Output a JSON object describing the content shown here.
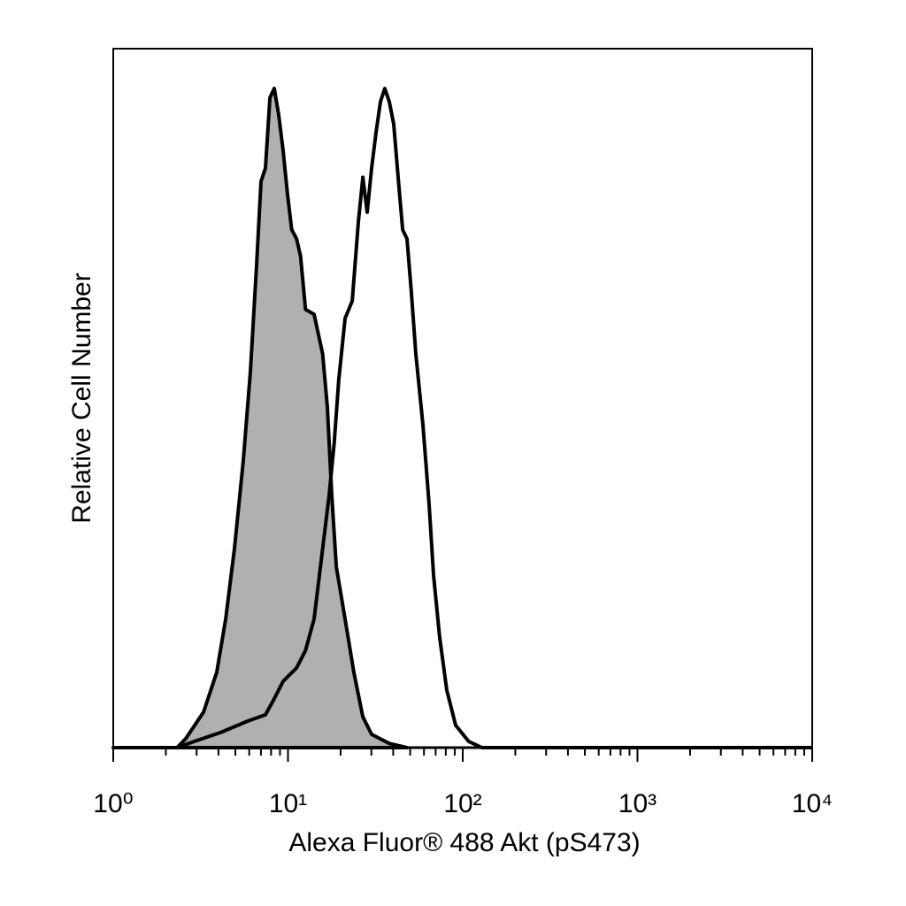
{
  "chart_data": {
    "type": "histogram-overlay",
    "xlabel": "Alexa Fluor® 488 Akt (pS473)",
    "ylabel": "Relative Cell Number",
    "xscale": "log",
    "xlim": [
      1,
      10000
    ],
    "ylim": [
      0,
      100
    ],
    "xticks": [
      {
        "value": 1,
        "label": "10⁰"
      },
      {
        "value": 10,
        "label": "10¹"
      },
      {
        "value": 100,
        "label": "10²"
      },
      {
        "value": 1000,
        "label": "10³"
      },
      {
        "value": 10000,
        "label": "10⁴"
      }
    ],
    "xminorticks": [
      2,
      3,
      4,
      5,
      6,
      7,
      8,
      9,
      20,
      30,
      40,
      50,
      60,
      70,
      80,
      90,
      200,
      300,
      400,
      500,
      600,
      700,
      800,
      900,
      2000,
      3000,
      4000,
      5000,
      6000,
      7000,
      8000,
      9000
    ],
    "series": [
      {
        "color": "#000000",
        "fill": "#b0b0b0",
        "x": [
          1,
          2.32,
          2.6,
          3.29,
          3.91,
          4.4,
          4.94,
          5.55,
          6.09,
          6.61,
          7.01,
          7.43,
          7.88,
          8.35,
          8.85,
          9.38,
          9.94,
          10.5,
          11.2,
          11.8,
          12.6,
          14.1,
          15.8,
          16.8,
          17.8,
          18.9,
          21.2,
          23.8,
          26.8,
          30.1,
          38.0,
          48.0
        ],
        "values": [
          0,
          0,
          1.3,
          5.1,
          10.8,
          18.4,
          28.5,
          41.1,
          53.8,
          69.0,
          81.0,
          82.9,
          93.0,
          94.3,
          90.5,
          85.4,
          79.1,
          74.1,
          72.8,
          70.3,
          62.7,
          62.0,
          56.3,
          48.7,
          36.1,
          25.9,
          18.4,
          10.8,
          4.4,
          1.9,
          0.6,
          0
        ]
      },
      {
        "color": "#000000",
        "fill": "none",
        "x": [
          1,
          2.32,
          2.92,
          4.15,
          5.88,
          7.43,
          8.35,
          9.38,
          11.2,
          12.6,
          14.1,
          15.8,
          17.2,
          18.4,
          19.5,
          21.2,
          23.3,
          25.3,
          26.8,
          28.4,
          30.1,
          31.9,
          33.8,
          35.8,
          38.0,
          40.3,
          42.7,
          45.3,
          48.0,
          50.8,
          53.9,
          59.2,
          64.2,
          68.1,
          73.8,
          81.1,
          91.1,
          108,
          129,
          10000
        ],
        "values": [
          0,
          0,
          0.9,
          2.2,
          3.8,
          4.7,
          7.0,
          9.5,
          11.4,
          13.9,
          18.4,
          28.5,
          36.1,
          43.7,
          52.5,
          61.4,
          63.9,
          75.3,
          81.6,
          76.6,
          82.9,
          88.0,
          92.4,
          94.3,
          92.4,
          89.2,
          81.6,
          74.1,
          72.8,
          65.2,
          56.3,
          46.2,
          34.8,
          24.7,
          15.8,
          8.2,
          3.2,
          0.9,
          0,
          0
        ]
      }
    ]
  }
}
